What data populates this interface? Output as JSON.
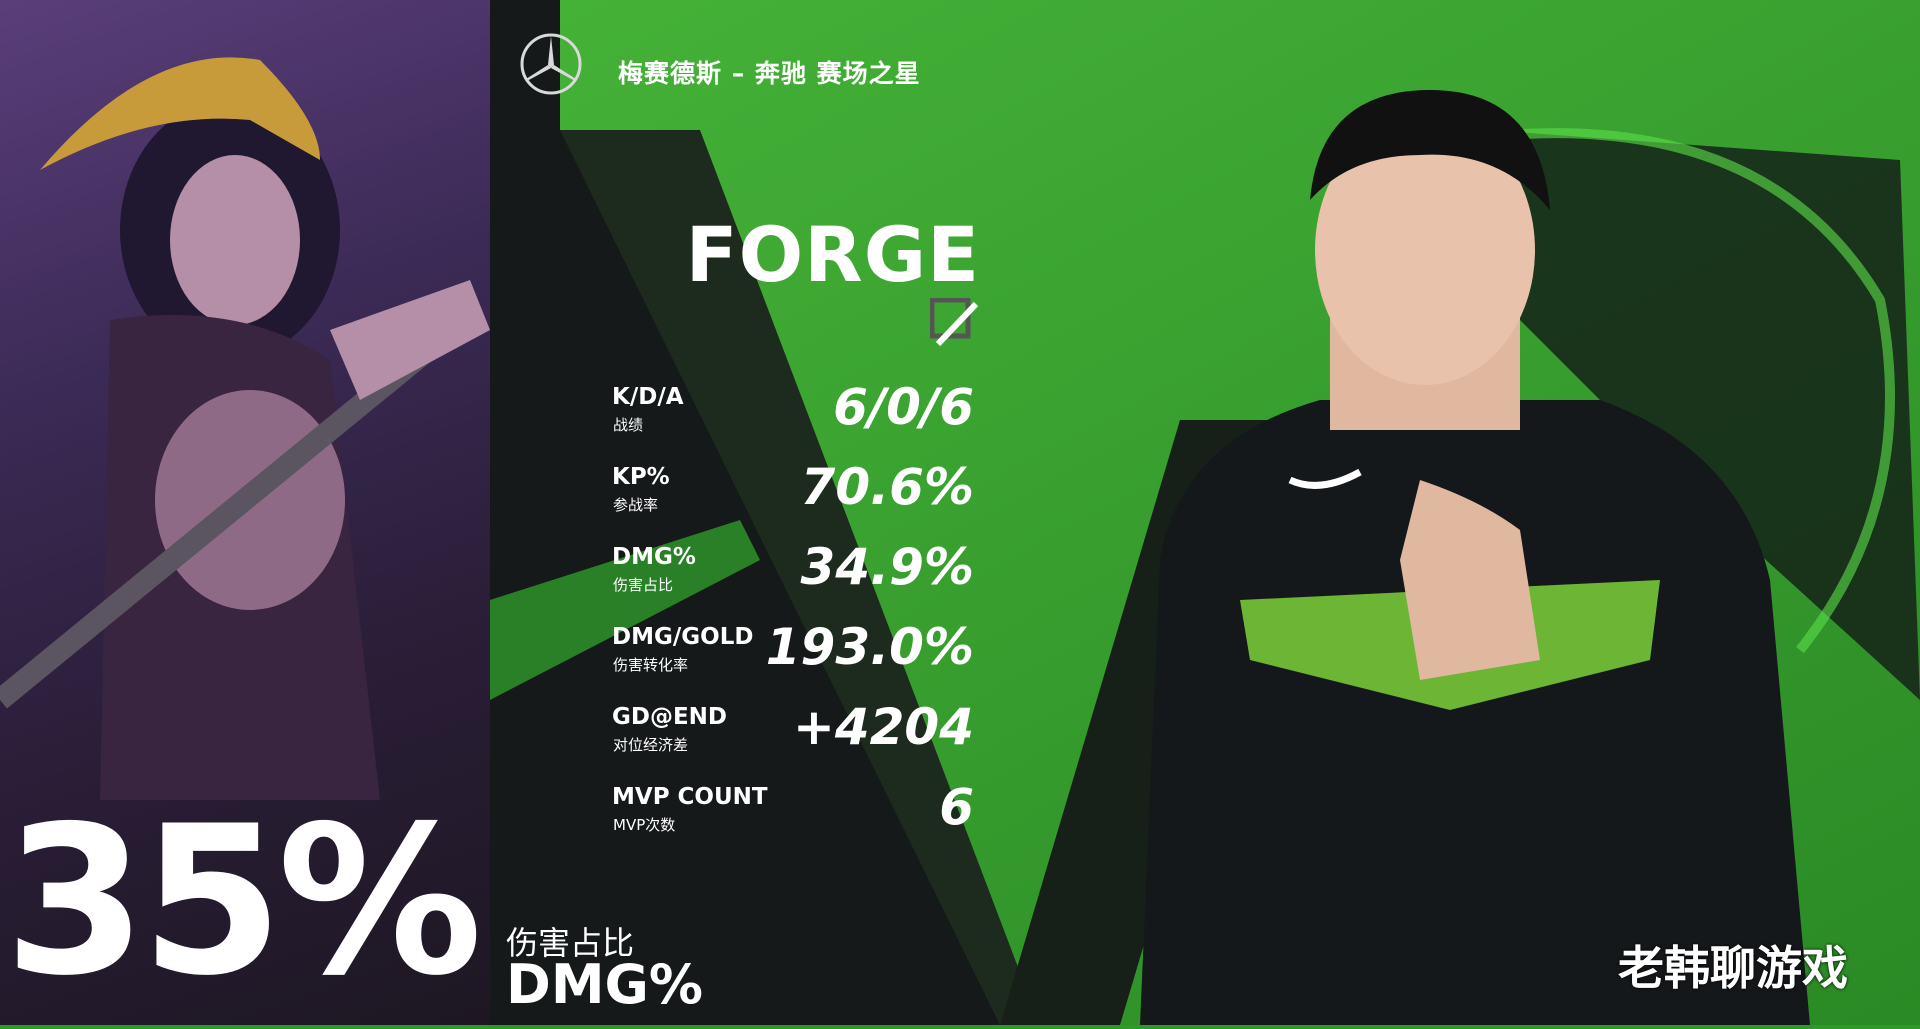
{
  "header": {
    "sponsor_logo": "mercedes-benz-star-icon",
    "title": "梅赛德斯 – 奔驰 赛场之星"
  },
  "player": {
    "name": "FORGE",
    "role_icon": "slash-icon"
  },
  "stats": [
    {
      "label": "K/D/A",
      "sub": "战绩",
      "value": "6/0/6"
    },
    {
      "label": "KP%",
      "sub": "参战率",
      "value": "70.6%"
    },
    {
      "label": "DMG%",
      "sub": "伤害占比",
      "value": "34.9%"
    },
    {
      "label": "DMG/GOLD",
      "sub": "伤害转化率",
      "value": "193.0%"
    },
    {
      "label": "GD@END",
      "sub": "对位经济差",
      "value": "+4204"
    },
    {
      "label": "MVP COUNT",
      "sub": "MVP次数",
      "value": "6"
    }
  ],
  "highlight": {
    "value": "35%",
    "label_cn": "伤害占比",
    "label_en": "DMG%"
  },
  "watermark": "老韩聊游戏",
  "colors": {
    "green": "#3aa832",
    "dark": "#15191a"
  }
}
